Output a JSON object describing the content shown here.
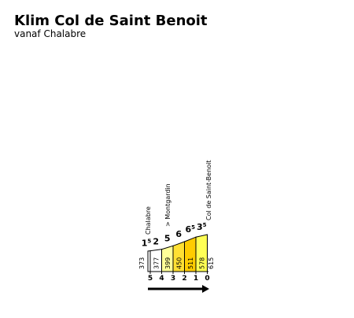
{
  "chart_data": {
    "type": "climb",
    "title": "Klim Col de Saint Benoit",
    "subtitle": "vanaf Chalabre",
    "gradients": [
      1.5,
      2,
      5,
      6,
      6.5,
      3.5
    ],
    "colors": [
      "#ffffff",
      "#ffffff",
      "#ffff99",
      "#ffe033",
      "#ffcc00",
      "#ffff55"
    ],
    "altitudes": [
      373,
      377,
      399,
      450,
      511,
      578,
      615
    ],
    "distance_ticks": [
      5,
      4,
      3,
      2,
      1,
      0
    ],
    "places": [
      "Chalabre",
      "> Montgardin",
      "Col de Saint-Benoit"
    ]
  }
}
